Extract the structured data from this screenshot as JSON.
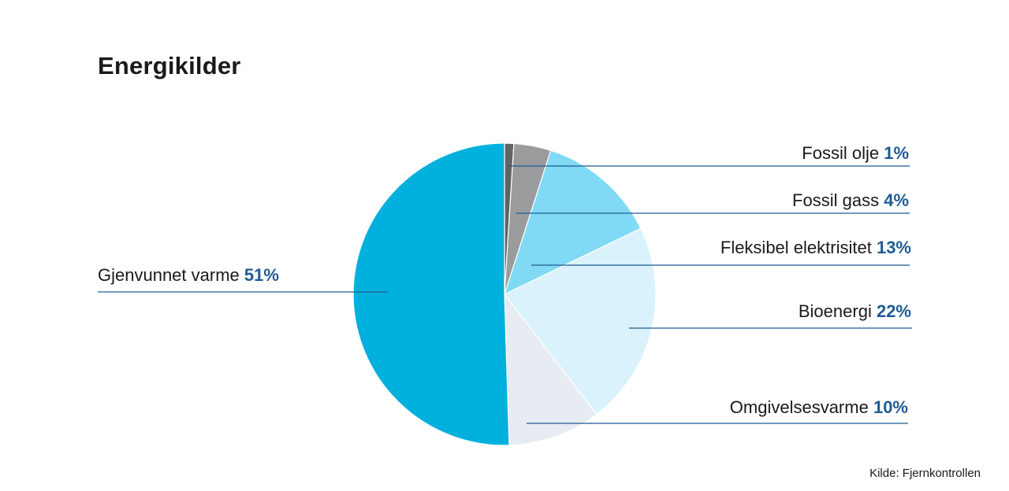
{
  "chart_data": {
    "type": "pie",
    "title": "Energikilder",
    "slices": [
      {
        "label": "Fossil olje",
        "pct_label": "1%",
        "value": 1,
        "color": "#616365"
      },
      {
        "label": "Fossil gass",
        "pct_label": "4%",
        "value": 4,
        "color": "#9a9b9d"
      },
      {
        "label": "Fleksibel elektrisitet",
        "pct_label": "13%",
        "value": 13,
        "color": "#80d9f5"
      },
      {
        "label": "Bioenergi",
        "pct_label": "22%",
        "value": 22,
        "color": "#d9f2fb"
      },
      {
        "label": "Omgivelsesvarme",
        "pct_label": "10%",
        "value": 10,
        "color": "#e7ebf2"
      },
      {
        "label": "Gjenvunnet varme",
        "pct_label": "51%",
        "value": 51,
        "color": "#00b0dd"
      }
    ],
    "start": "top",
    "direction": "clockwise",
    "source": "Kilde: Fjernkontrollen"
  },
  "colors": {
    "leader_line": "#1f5b94",
    "percent_text": "#1f5b94"
  }
}
